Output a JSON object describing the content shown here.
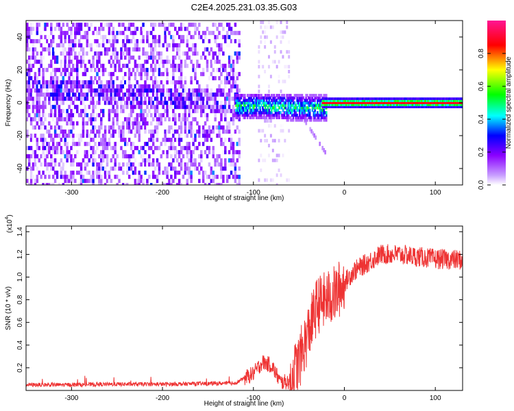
{
  "title": "C2E4.2025.231.03.35.G03",
  "colorbar": {
    "label": "Normalized spectral amplitude",
    "ticks": [
      "0.0",
      "0.2",
      "0.4",
      "0.6",
      "0.8"
    ],
    "tick_values": [
      0.0,
      0.2,
      0.4,
      0.6,
      0.8
    ],
    "range": [
      0,
      1
    ],
    "colormap": [
      "#ffffff",
      "#8a00ff",
      "#0000ff",
      "#00ffff",
      "#00ff00",
      "#ffff00",
      "#ff0000",
      "#ff1493"
    ]
  },
  "chart_data": [
    {
      "type": "heatmap",
      "xlabel": "Height of straight line (km)",
      "ylabel": "Frequency (Hz)",
      "xlim": [
        -350,
        130
      ],
      "ylim": [
        -50,
        50
      ],
      "xticks": [
        -300,
        -200,
        -100,
        0,
        100
      ],
      "yticks": [
        -40,
        -20,
        0,
        20,
        40
      ],
      "xtick_labels": [
        "-300",
        "-200",
        "-100",
        "0",
        "100"
      ],
      "ytick_labels": [
        "-40",
        "-20",
        "0",
        "20",
        "40"
      ],
      "regions": [
        {
          "x_range": [
            -350,
            -115
          ],
          "freq_range": [
            -50,
            50
          ],
          "amplitude": 0.15
        },
        {
          "x_range": [
            -95,
            -70
          ],
          "freq_range": [
            -50,
            50
          ],
          "amplitude": 0.03
        },
        {
          "x_range": [
            -120,
            -30
          ],
          "freq_center": 0,
          "freq_width": 8,
          "amplitude": 0.35
        },
        {
          "x_range": [
            -20,
            130
          ],
          "freq_center": 0,
          "freq_width": 3,
          "amplitude": 0.95
        }
      ],
      "colors": {
        "background": "#ffffff",
        "low": "#8a00ff",
        "mid": "#00ff00",
        "high": "#ff0000"
      }
    },
    {
      "type": "line",
      "xlabel": "Height of straight line (km)",
      "ylabel": "SNR (10 * v/v)",
      "y_multiplier": "(x10",
      "y_multiplier_exp": "4",
      "y_multiplier_close": ")",
      "xlim": [
        -350,
        130
      ],
      "ylim": [
        0,
        14500
      ],
      "xticks": [
        -300,
        -200,
        -100,
        0,
        100
      ],
      "yticks": [
        2000,
        4000,
        6000,
        8000,
        10000,
        12000,
        14000
      ],
      "xtick_labels": [
        "-300",
        "-200",
        "-100",
        "0",
        "100"
      ],
      "ytick_labels": [
        "0.2",
        "0.4",
        "0.6",
        "0.8",
        "1.0",
        "1.2",
        "1.4"
      ],
      "series": [
        {
          "color": "#ee3333",
          "x": [
            -350,
            -300,
            -250,
            -200,
            -150,
            -120,
            -100,
            -90,
            -80,
            -70,
            -60,
            -50,
            -40,
            -30,
            -20,
            -10,
            0,
            10,
            20,
            30,
            40,
            60,
            80,
            100,
            130
          ],
          "y": [
            500,
            500,
            550,
            550,
            600,
            650,
            1500,
            2500,
            2200,
            700,
            800,
            2500,
            5000,
            7500,
            8000,
            8500,
            9500,
            10500,
            11000,
            11500,
            12000,
            12000,
            11800,
            11600,
            11500
          ]
        }
      ]
    }
  ]
}
